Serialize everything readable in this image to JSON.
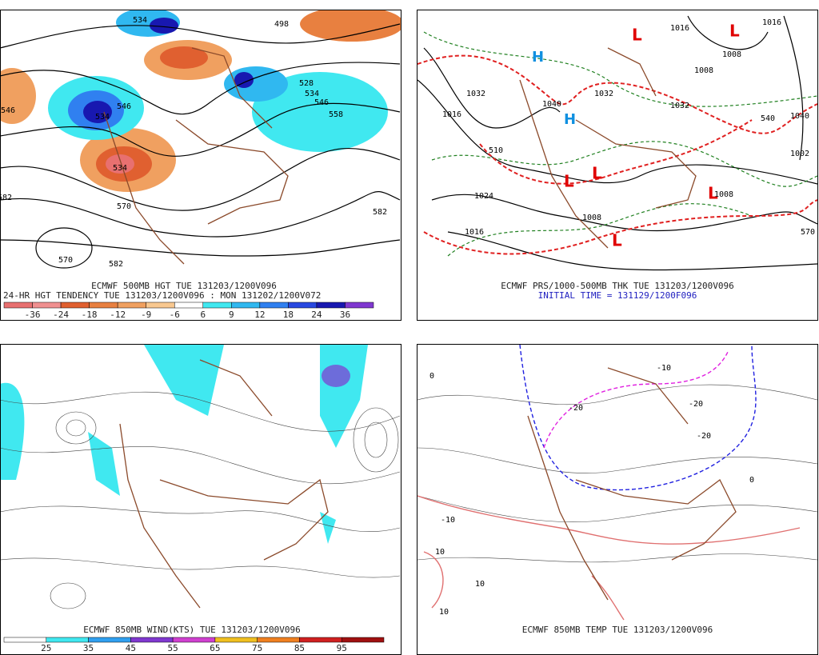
{
  "panels": [
    {
      "title": "ECMWF 500MB HGT TUE 131203/1200V096",
      "subtitle": "24-HR HGT TENDENCY TUE 131203/1200V096 : MON 131202/1200V072",
      "colorbar": {
        "labels": [
          -36,
          -24,
          -18,
          -12,
          -9,
          -6,
          6,
          9,
          12,
          18,
          24,
          36
        ],
        "colors": [
          "#e87070",
          "#f09090",
          "#e06030",
          "#e88040",
          "#f0a060",
          "#f8c890",
          "#ffffff",
          "#40e8f0",
          "#30b8f0",
          "#3080f0",
          "#2848e0",
          "#1818b0",
          "#8038d0"
        ]
      },
      "contour_labels": [
        534,
        498,
        546,
        534,
        528,
        534,
        546,
        558,
        534,
        570,
        582,
        570,
        582,
        582,
        546
      ]
    },
    {
      "title": "ECMWF PRS/1000-500MB THK TUE 131203/1200V096",
      "subtitle": "INITIAL TIME = 131129/1200F096",
      "contour_labels": [
        1032,
        1016,
        1040,
        1032,
        1032,
        1024,
        1016,
        1008,
        1002,
        1040,
        1016,
        1008,
        1008,
        1016,
        1008,
        570,
        540,
        510
      ]
    },
    {
      "title": "ECMWF 850MB WIND(KTS) TUE 131203/1200V096",
      "colorbar": {
        "labels": [
          25,
          35,
          45,
          55,
          65,
          75,
          85,
          95
        ],
        "colors": [
          "#ffffff",
          "#40e8f0",
          "#30a0f0",
          "#8038d0",
          "#d040d0",
          "#f0c020",
          "#f08020",
          "#d02020",
          "#a01010"
        ]
      }
    },
    {
      "title": "ECMWF 850MB TEMP TUE 131203/1200V096",
      "contour_labels": [
        -20,
        -20,
        -20,
        -10,
        -10,
        0,
        0,
        10,
        10,
        10
      ]
    }
  ]
}
